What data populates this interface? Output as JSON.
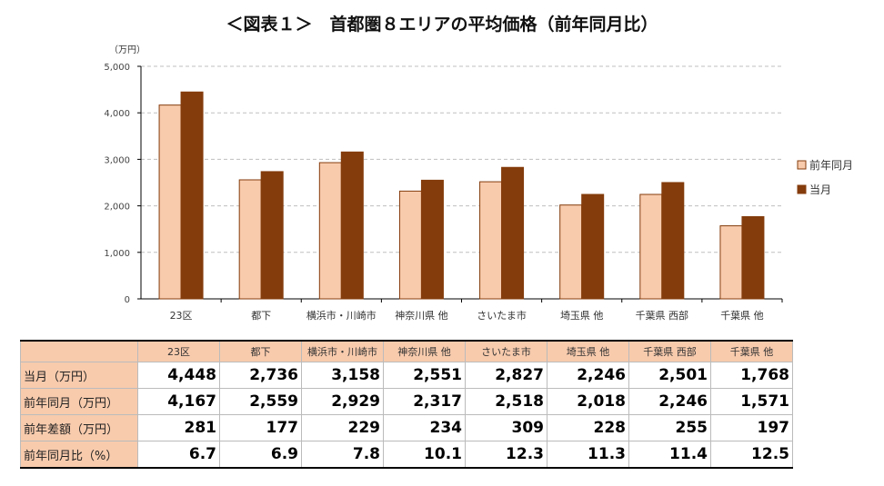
{
  "title": "＜図表１＞　首都圏８エリアの平均価格（前年同月比）",
  "chart_data": {
    "type": "bar",
    "title": "＜図表１＞　首都圏８エリアの平均価格（前年同月比）",
    "ylabel": "（万円）",
    "ylim": [
      0,
      5000
    ],
    "yticks": [
      "0",
      "1,000",
      "2,000",
      "3,000",
      "4,000",
      "5,000"
    ],
    "grid": true,
    "legend": "right",
    "categories": [
      "23区",
      "都下",
      "横浜市・川崎市",
      "神奈川県 他",
      "さいたま市",
      "埼玉県 他",
      "千葉県 西部",
      "千葉県 他"
    ],
    "series": [
      {
        "name": "前年同月",
        "color": "#f8cbad",
        "values": [
          4167,
          2559,
          2929,
          2317,
          2518,
          2018,
          2246,
          1571
        ]
      },
      {
        "name": "当月",
        "color": "#843c0c",
        "values": [
          4448,
          2736,
          3158,
          2551,
          2827,
          2246,
          2501,
          1768
        ]
      }
    ]
  },
  "table": {
    "headers": [
      "23区",
      "都下",
      "横浜市・川崎市",
      "神奈川県 他",
      "さいたま市",
      "埼玉県 他",
      "千葉県 西部",
      "千葉県 他"
    ],
    "rows": [
      {
        "label": "当月（万円）",
        "values": [
          "4,448",
          "2,736",
          "3,158",
          "2,551",
          "2,827",
          "2,246",
          "2,501",
          "1,768"
        ]
      },
      {
        "label": "前年同月（万円）",
        "values": [
          "4,167",
          "2,559",
          "2,929",
          "2,317",
          "2,518",
          "2,018",
          "2,246",
          "1,571"
        ]
      },
      {
        "label": "前年差額（万円）",
        "values": [
          "281",
          "177",
          "229",
          "234",
          "309",
          "228",
          "255",
          "197"
        ]
      },
      {
        "label": "前年同月比（%）",
        "values": [
          "6.7",
          "6.9",
          "7.8",
          "10.1",
          "12.3",
          "11.3",
          "11.4",
          "12.5"
        ]
      }
    ]
  }
}
